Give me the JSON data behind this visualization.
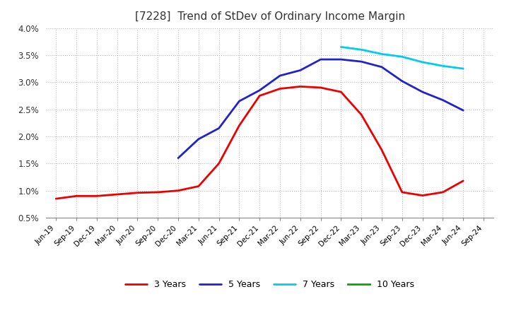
{
  "title": "[7228]  Trend of StDev of Ordinary Income Margin",
  "title_fontsize": 11,
  "ylim": [
    0.005,
    0.04
  ],
  "yticks": [
    0.005,
    0.01,
    0.015,
    0.02,
    0.025,
    0.03,
    0.035,
    0.04
  ],
  "ytick_labels": [
    "0.5%",
    "1.0%",
    "1.5%",
    "2.0%",
    "2.5%",
    "3.0%",
    "3.5%",
    "4.0%"
  ],
  "background_color": "#ffffff",
  "plot_bg_color": "#ffffff",
  "grid_color": "#bbbbbb",
  "x_labels": [
    "Jun-19",
    "Sep-19",
    "Dec-19",
    "Mar-20",
    "Jun-20",
    "Sep-20",
    "Dec-20",
    "Mar-21",
    "Jun-21",
    "Sep-21",
    "Dec-21",
    "Mar-22",
    "Jun-22",
    "Sep-22",
    "Dec-22",
    "Mar-23",
    "Jun-23",
    "Sep-23",
    "Dec-23",
    "Mar-24",
    "Jun-24",
    "Sep-24"
  ],
  "series_3y": [
    0.0085,
    0.009,
    0.009,
    0.0093,
    0.0096,
    0.0097,
    0.01,
    0.0108,
    0.015,
    0.022,
    0.0275,
    0.0288,
    0.0292,
    0.029,
    0.0282,
    0.024,
    0.0175,
    0.0097,
    0.0091,
    0.0097,
    0.0118,
    null
  ],
  "series_5y": [
    null,
    null,
    null,
    null,
    null,
    null,
    0.016,
    0.0195,
    0.0215,
    0.0265,
    0.0285,
    0.0312,
    0.0322,
    0.0342,
    0.0342,
    0.0338,
    0.0328,
    0.0302,
    0.0282,
    0.0267,
    0.0248,
    null
  ],
  "series_7y": [
    null,
    null,
    null,
    null,
    null,
    null,
    null,
    null,
    null,
    null,
    null,
    null,
    null,
    null,
    0.0365,
    0.036,
    0.0352,
    0.0347,
    0.0337,
    0.033,
    0.0325,
    null
  ],
  "series_10y": [
    null,
    null,
    null,
    null,
    null,
    null,
    null,
    null,
    null,
    null,
    null,
    null,
    null,
    null,
    null,
    null,
    null,
    null,
    null,
    null,
    null,
    null
  ],
  "color_3y": "#ee0000",
  "color_5y": "#2222cc",
  "color_7y": "#00ccee",
  "color_10y": "#00aa00",
  "line_width": 2.0,
  "legend_labels": [
    "3 Years",
    "5 Years",
    "7 Years",
    "10 Years"
  ]
}
